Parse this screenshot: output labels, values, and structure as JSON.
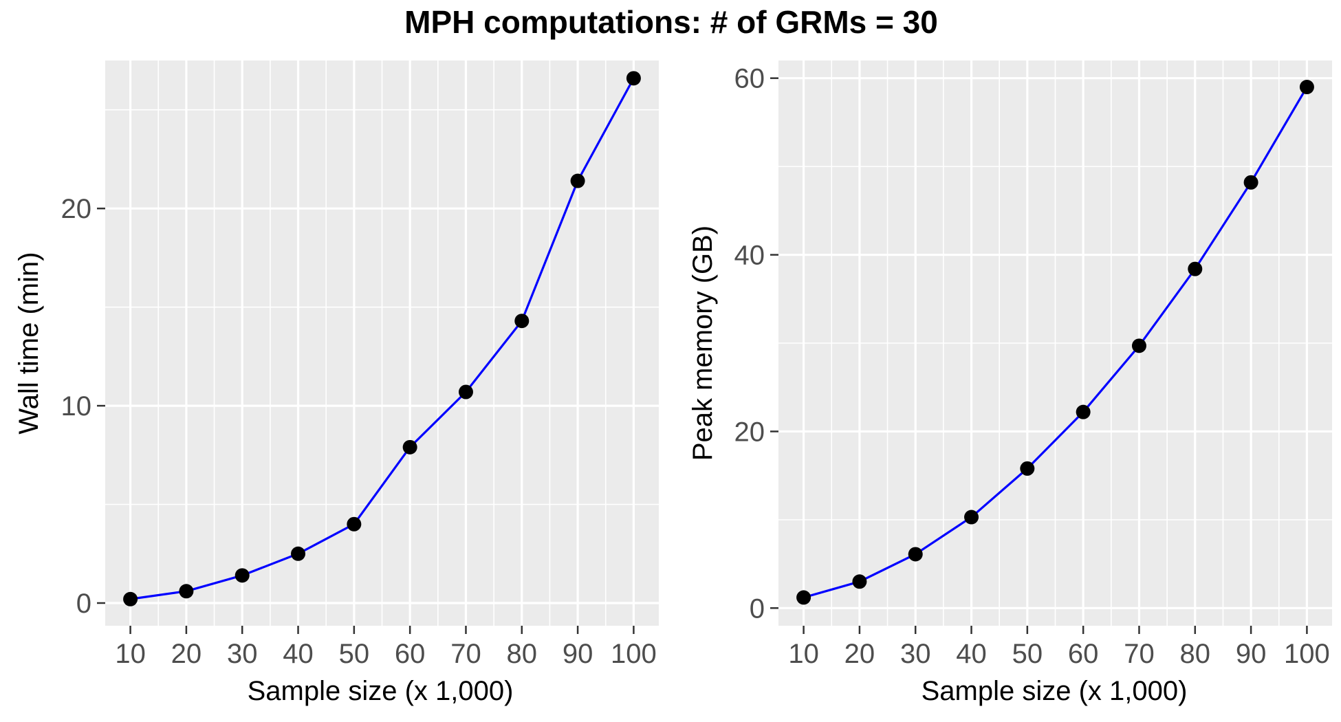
{
  "figure": {
    "title": "MPH computations: # of GRMs = 30"
  },
  "chart_data": [
    {
      "type": "line",
      "title": "",
      "xlabel": "Sample size (x 1,000)",
      "ylabel": "Wall time (min)",
      "x": [
        10,
        20,
        30,
        40,
        50,
        60,
        70,
        80,
        90,
        100
      ],
      "series": [
        {
          "values": [
            0.2,
            0.6,
            1.4,
            2.5,
            4.0,
            7.9,
            10.7,
            14.3,
            21.4,
            26.6
          ]
        }
      ],
      "x_ticks": [
        "10",
        "20",
        "30",
        "40",
        "50",
        "60",
        "70",
        "80",
        "90",
        "100"
      ],
      "y_ticks": [
        "0",
        "10",
        "20"
      ],
      "y_tick_values": [
        0,
        10,
        20
      ],
      "xlim": [
        5.5,
        104.5
      ],
      "ylim": [
        -1.15,
        27.5
      ],
      "grid": true,
      "legend": "none",
      "line_color": "#0000ff",
      "point_color": "#000000",
      "panel_background": "#ebebeb"
    },
    {
      "type": "line",
      "title": "",
      "xlabel": "Sample size (x 1,000)",
      "ylabel": "Peak memory (GB)",
      "x": [
        10,
        20,
        30,
        40,
        50,
        60,
        70,
        80,
        90,
        100
      ],
      "series": [
        {
          "values": [
            1.2,
            3.0,
            6.1,
            10.3,
            15.8,
            22.2,
            29.7,
            38.4,
            48.2,
            59.0
          ]
        }
      ],
      "x_ticks": [
        "10",
        "20",
        "30",
        "40",
        "50",
        "60",
        "70",
        "80",
        "90",
        "100"
      ],
      "y_ticks": [
        "0",
        "20",
        "40",
        "60"
      ],
      "y_tick_values": [
        0,
        20,
        40,
        60
      ],
      "xlim": [
        5.5,
        104.5
      ],
      "ylim": [
        -2.0,
        62.0
      ],
      "grid": true,
      "legend": "none",
      "line_color": "#0000ff",
      "point_color": "#000000",
      "panel_background": "#ebebeb"
    }
  ]
}
